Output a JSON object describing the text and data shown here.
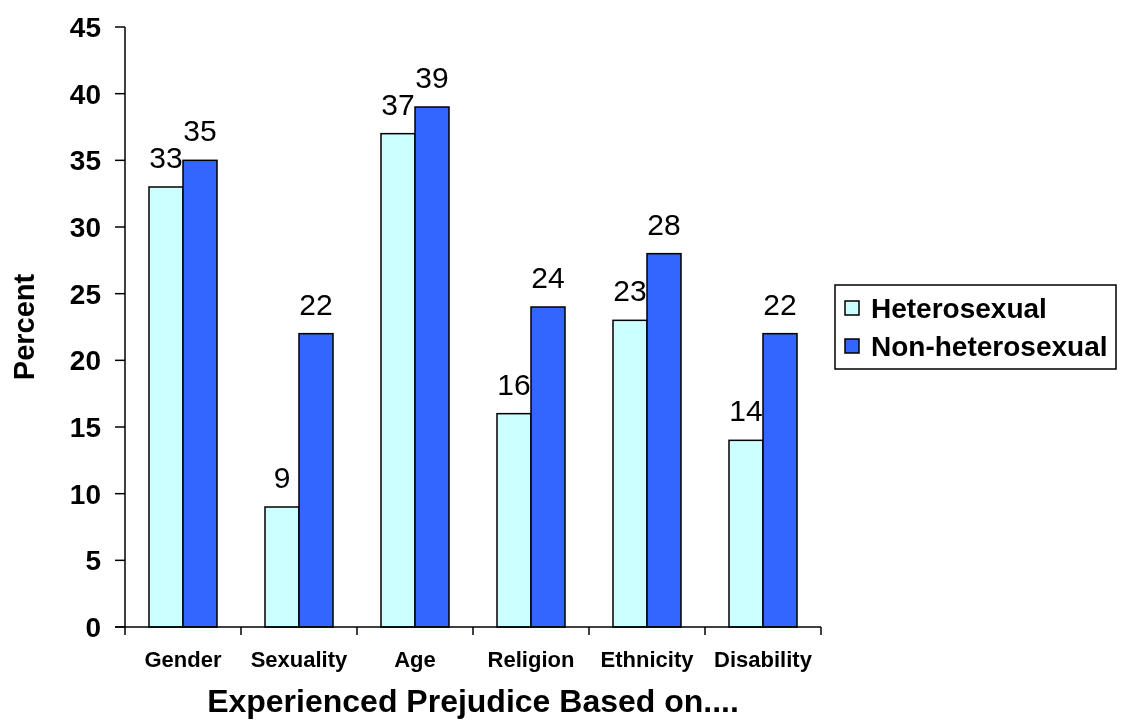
{
  "chart_data": {
    "type": "bar",
    "xlabel": "Experienced Prejudice Based on....",
    "ylabel": "Percent",
    "categories": [
      "Gender",
      "Sexuality",
      "Age",
      "Religion",
      "Ethnicity",
      "Disability"
    ],
    "series": [
      {
        "name": "Heterosexual",
        "color": "#ccffff",
        "values": [
          33,
          9,
          37,
          16,
          23,
          14
        ]
      },
      {
        "name": "Non-heterosexual",
        "color": "#3366ff",
        "values": [
          35,
          22,
          39,
          24,
          28,
          22
        ]
      }
    ],
    "ylim": [
      0,
      45
    ],
    "yticks": [
      0,
      5,
      10,
      15,
      20,
      25,
      30,
      35,
      40,
      45
    ],
    "data_labels": true,
    "legend": "right"
  }
}
